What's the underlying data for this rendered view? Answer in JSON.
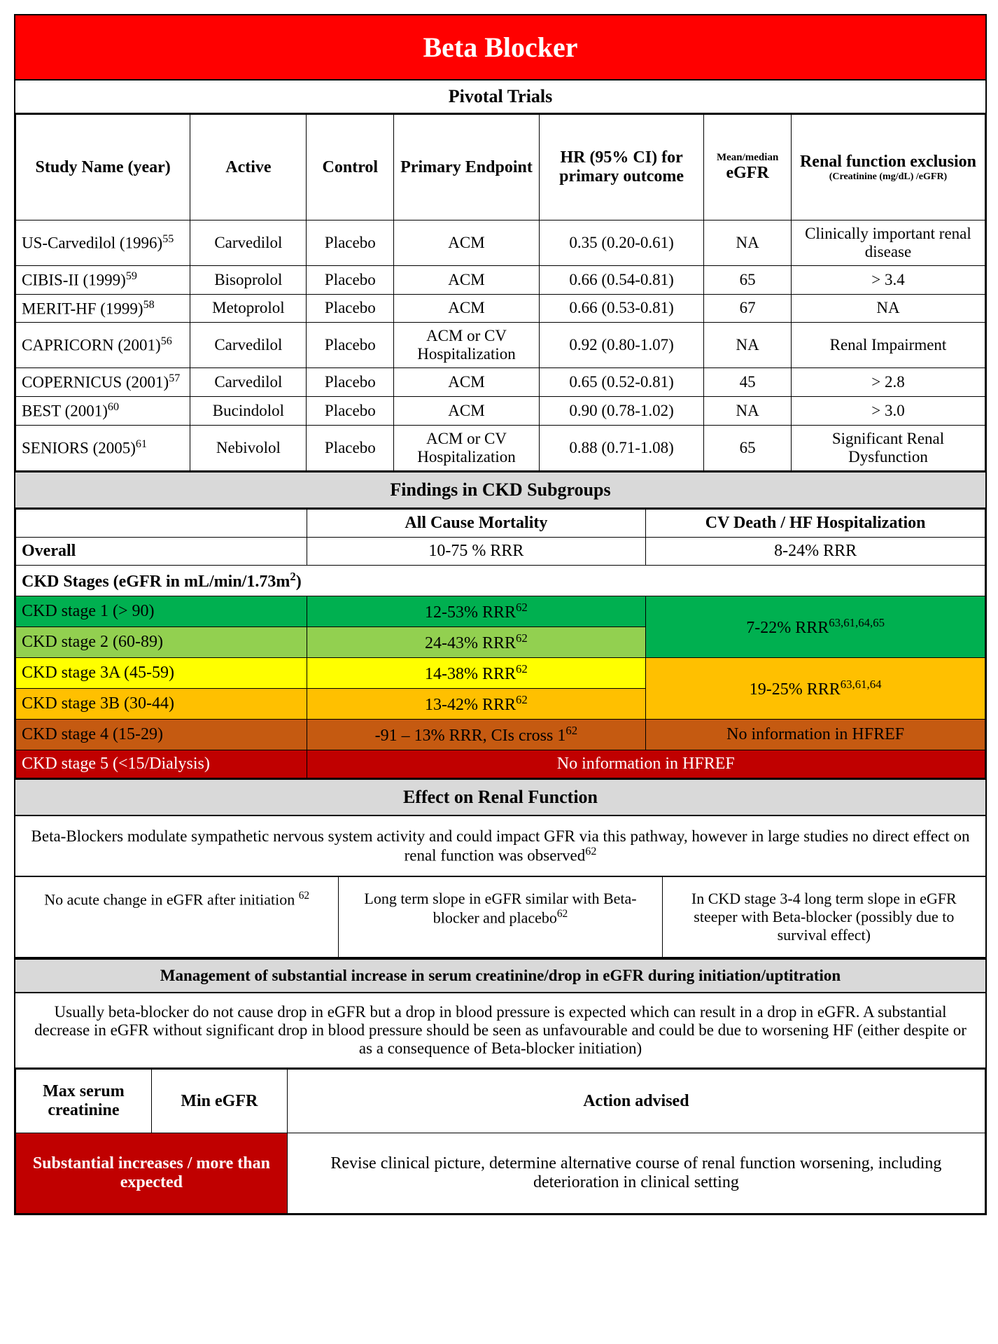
{
  "title": "Beta Blocker",
  "pivotal": {
    "header": "Pivotal Trials",
    "columns": {
      "study": "Study Name (year)",
      "active": "Active",
      "control": "Control",
      "primary": "Primary Endpoint",
      "hr": "HR (95% CI) for primary outcome",
      "egfr_top": "Mean/median",
      "egfr": "eGFR",
      "renal": "Renal function exclusion",
      "renal_sub": "(Creatinine (mg/dL) /eGFR)"
    },
    "rows": [
      {
        "study": "US-Carvedilol (1996)",
        "sup": "55",
        "active": "Carvedilol",
        "control": "Placebo",
        "primary": "ACM",
        "hr": "0.35 (0.20-0.61)",
        "egfr": "NA",
        "excl": "Clinically important renal disease",
        "excl_small": true
      },
      {
        "study": "CIBIS-II (1999)",
        "sup": "59",
        "active": "Bisoprolol",
        "control": "Placebo",
        "primary": "ACM",
        "hr": "0.66 (0.54-0.81)",
        "egfr": "65",
        "excl": "> 3.4"
      },
      {
        "study": "MERIT-HF (1999)",
        "sup": "58",
        "active": "Metoprolol",
        "control": "Placebo",
        "primary": "ACM",
        "hr": "0.66 (0.53-0.81)",
        "egfr": "67",
        "excl": "NA"
      },
      {
        "study": "CAPRICORN (2001)",
        "sup": "56",
        "active": "Carvedilol",
        "control": "Placebo",
        "primary": "ACM or CV Hospitalization",
        "hr": "0.92 (0.80-1.07)",
        "egfr": "NA",
        "excl": "Renal Impairment",
        "excl_small": true
      },
      {
        "study": "COPERNICUS (2001)",
        "sup": "57",
        "active": "Carvedilol",
        "control": "Placebo",
        "primary": "ACM",
        "hr": "0.65 (0.52-0.81)",
        "egfr": "45",
        "excl": "> 2.8"
      },
      {
        "study": "BEST (2001)",
        "sup": "60",
        "active": "Bucindolol",
        "control": "Placebo",
        "primary": "ACM",
        "hr": "0.90 (0.78-1.02)",
        "egfr": "NA",
        "excl": "> 3.0"
      },
      {
        "study": "SENIORS (2005)",
        "sup": "61",
        "active": "Nebivolol",
        "control": "Placebo",
        "primary": "ACM or CV Hospitalization",
        "hr": "0.88 (0.71-1.08)",
        "egfr": "65",
        "excl": "Significant Renal Dysfunction",
        "excl_small": true
      }
    ]
  },
  "ckd": {
    "header": "Findings in CKD Subgroups",
    "col_acm": "All Cause Mortality",
    "col_cv": "CV Death / HF Hospitalization",
    "overall_label": "Overall",
    "overall_acm": "10-75 % RRR",
    "overall_cv": "8-24% RRR",
    "stages_label_pre": "CKD Stages (eGFR in mL/min/1.73m",
    "stages_label_sup": "2",
    "stages_label_post": ")",
    "stage1": {
      "label": "CKD stage 1 (> 90)",
      "acm": "12-53% RRR",
      "acm_sup": "62",
      "bg": "#00b050",
      "color": "#000000"
    },
    "stage2": {
      "label": "CKD stage 2 (60-89)",
      "acm": "24-43% RRR",
      "acm_sup": "62",
      "bg": "#92d050",
      "color": "#000000"
    },
    "stage12_cv": {
      "text": "7-22% RRR",
      "sup": "63,61,64,65",
      "bg": "#00b050",
      "color": "#000000"
    },
    "stage3a": {
      "label": "CKD stage 3A (45-59)",
      "acm": "14-38% RRR",
      "acm_sup": "62",
      "bg": "#ffff00",
      "color": "#000000"
    },
    "stage3b": {
      "label": "CKD stage 3B (30-44)",
      "acm": "13-42% RRR",
      "acm_sup": "62",
      "bg": "#ffc000",
      "color": "#000000"
    },
    "stage3_cv": {
      "text": "19-25% RRR",
      "sup": "63,61,64",
      "bg": "#ffc000",
      "color": "#000000"
    },
    "stage4": {
      "label": "CKD stage 4 (15-29)",
      "acm": "-91 – 13% RRR, CIs cross 1",
      "acm_sup": "62",
      "cv": "No information in HFREF",
      "bg": "#c55a11",
      "color": "#000000"
    },
    "stage5": {
      "label": "CKD stage 5 (<15/Dialysis)",
      "text": "No information in HFREF",
      "bg": "#c00000",
      "color": "#ffffff"
    }
  },
  "renal": {
    "header": "Effect on Renal Function",
    "text_pre": "Beta-Blockers modulate sympathetic nervous system activity and could impact GFR via this pathway, however in large studies no direct effect on renal function was observed",
    "text_sup": "62",
    "col1_pre": "No acute change in eGFR after initiation ",
    "col1_sup": "62",
    "col2_pre": "Long term slope in eGFR similar with Beta-blocker and placebo",
    "col2_sup": "62",
    "col3": "In CKD stage 3-4 long term slope in eGFR steeper with Beta-blocker (possibly due to survival effect)"
  },
  "mgmt": {
    "header": "Management of substantial increase in serum creatinine/drop in eGFR during initiation/uptitration",
    "text": "Usually beta-blocker do not cause drop in eGFR but a drop in blood pressure is expected which can result in a drop in eGFR. A substantial decrease in eGFR without significant drop in blood pressure should be seen as unfavourable and could be due to worsening HF (either despite or as a consequence of Beta-blocker initiation)",
    "col_max": "Max serum creatinine",
    "col_min": "Min eGFR",
    "col_action": "Action advised",
    "row_label": "Substantial increases / more than expected",
    "row_action": "Revise clinical picture, determine alternative course of renal function worsening, including deterioration in clinical setting"
  },
  "colors": {
    "title_bg": "#ff0000",
    "grey_bg": "#d9d9d9",
    "green": "#00b050",
    "light_green": "#92d050",
    "yellow": "#ffff00",
    "orange": "#ffc000",
    "brown": "#c55a11",
    "red": "#c00000"
  }
}
